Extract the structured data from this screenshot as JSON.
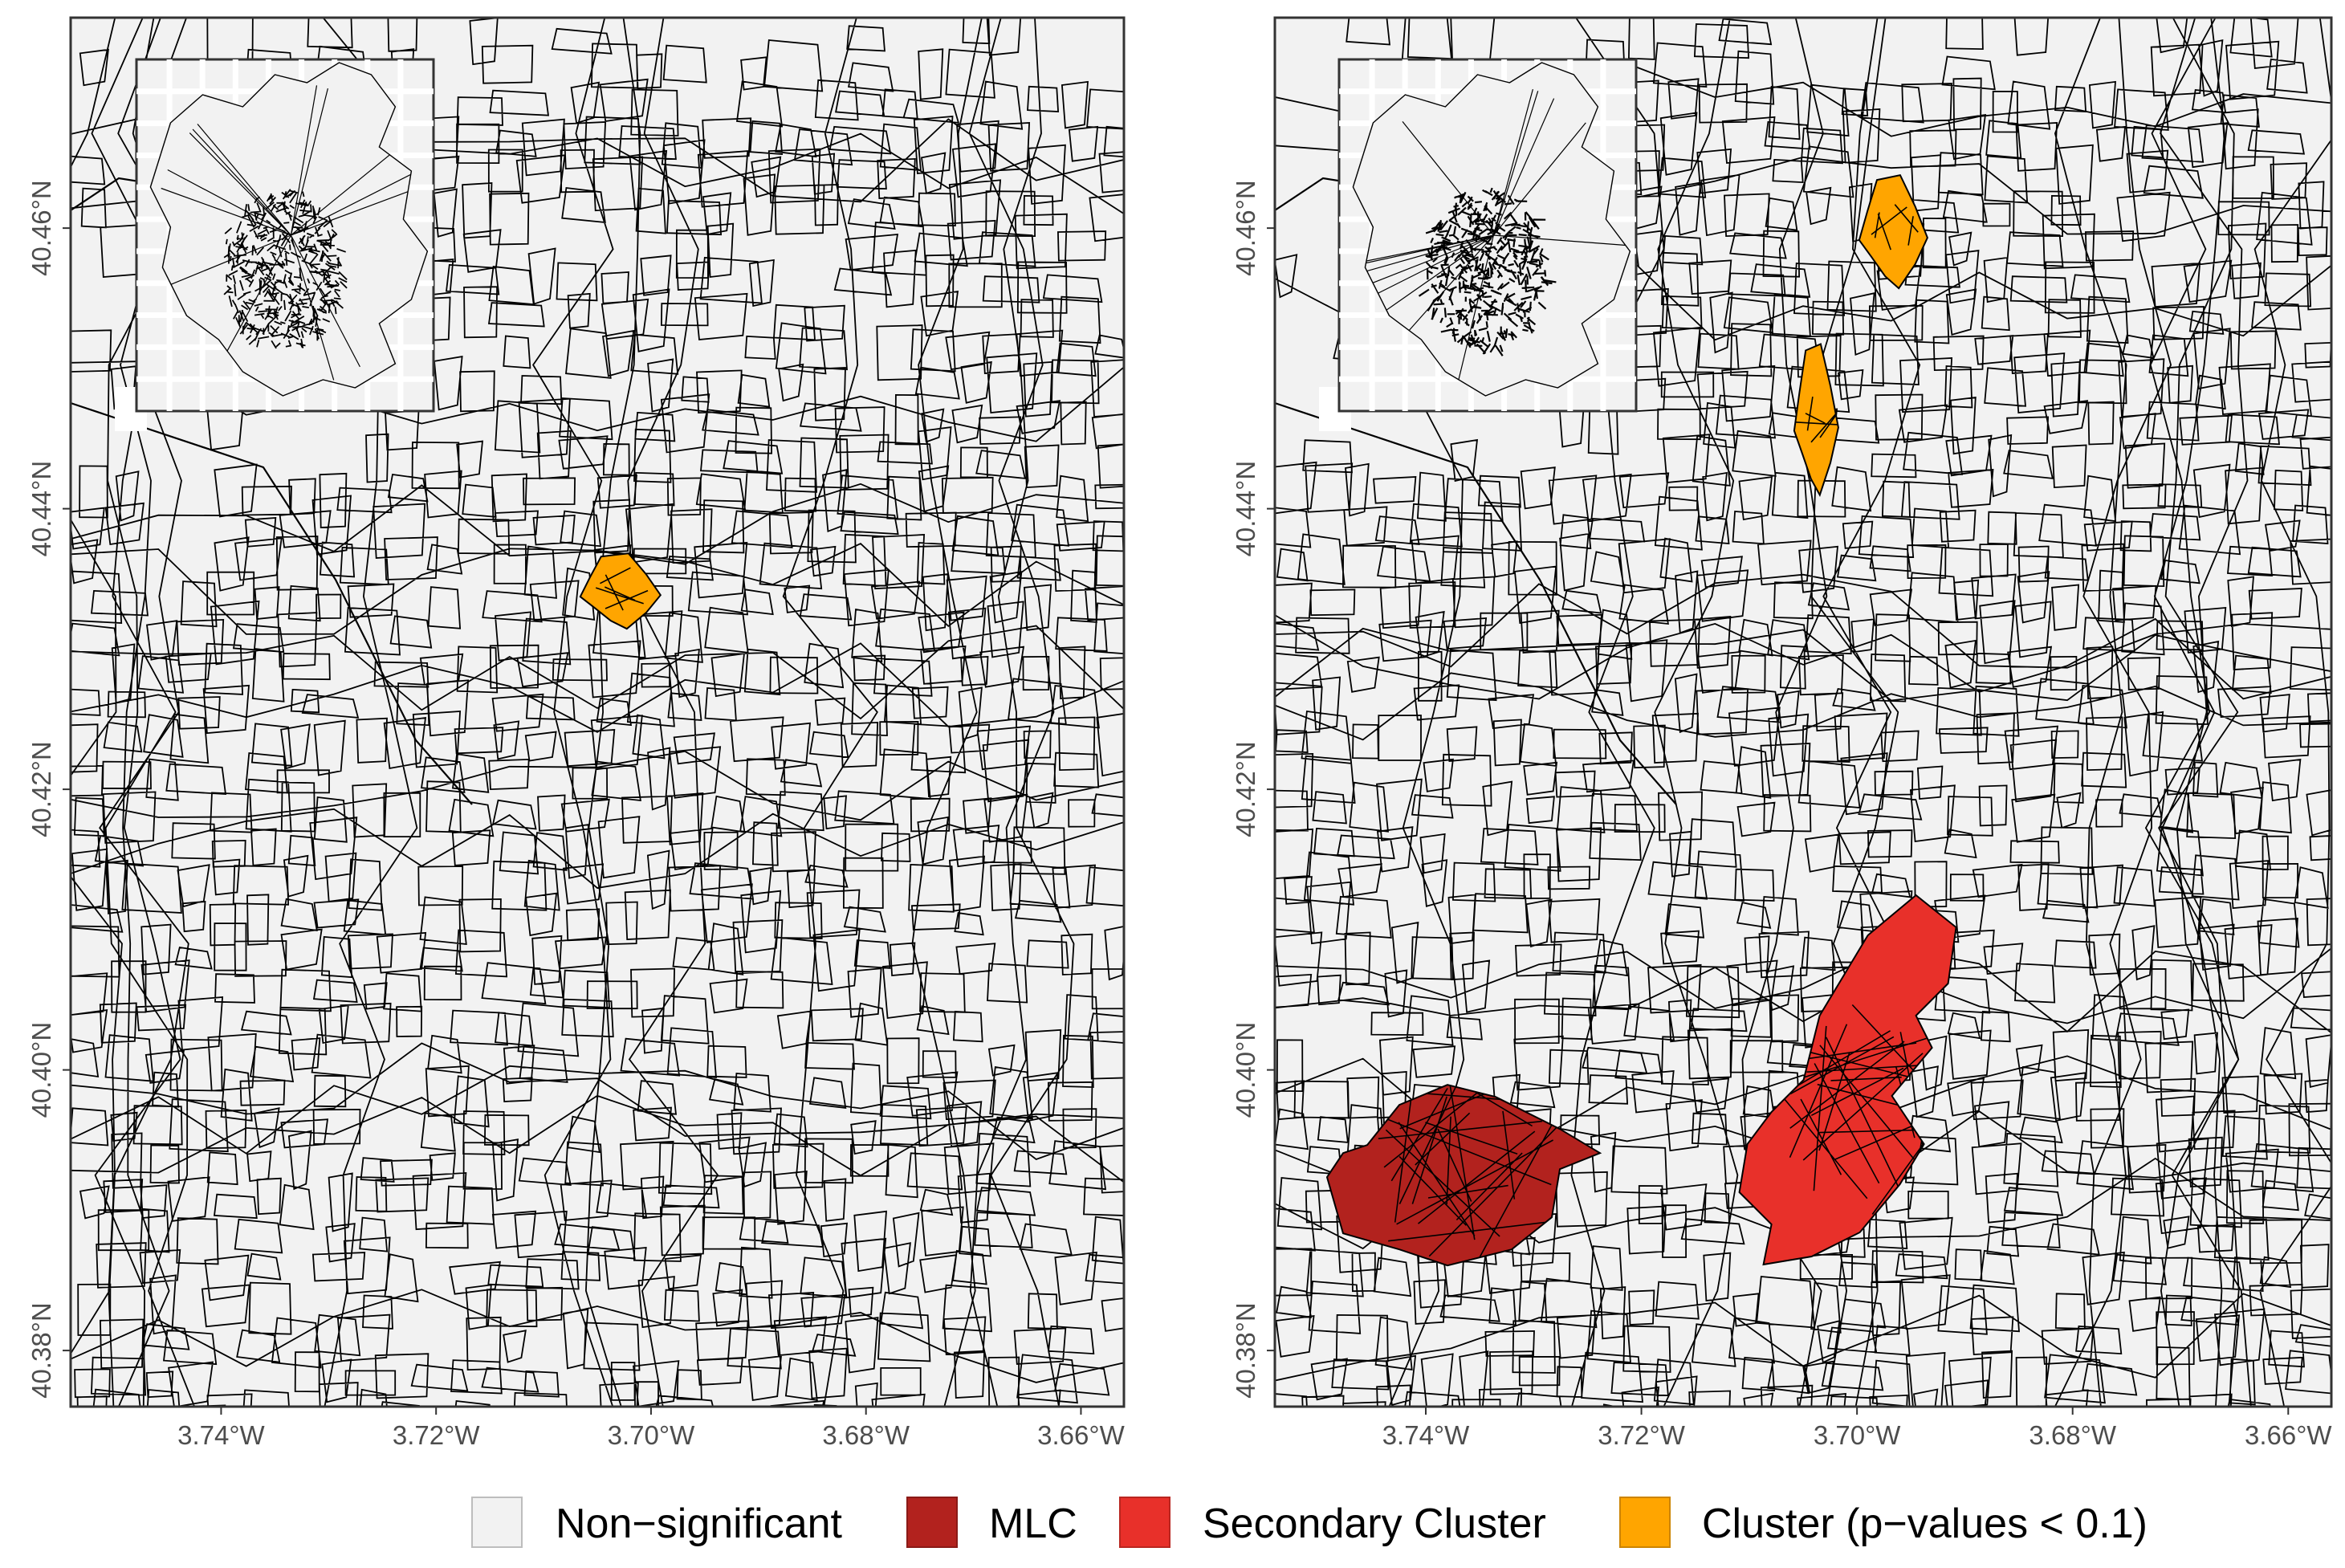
{
  "panels": [
    {
      "id": "left",
      "clusters": [
        {
          "type": "cluster_p01",
          "center": {
            "lon": -3.7027,
            "lat": 40.4343
          }
        }
      ]
    },
    {
      "id": "right",
      "clusters": [
        {
          "type": "cluster_p01",
          "center": {
            "lon": -3.6965,
            "lat": 40.46
          }
        },
        {
          "type": "cluster_p01",
          "center": {
            "lon": -3.7037,
            "lat": 40.4467
          }
        },
        {
          "type": "mlc",
          "center": {
            "lon": -3.7365,
            "lat": 40.3935
          }
        },
        {
          "type": "secondary",
          "center": {
            "lon": -3.699,
            "lat": 40.397
          }
        }
      ]
    }
  ],
  "axes": {
    "x": {
      "min": -3.754,
      "max": -3.656,
      "ticks": [
        {
          "value": -3.74,
          "label": "3.74°W"
        },
        {
          "value": -3.72,
          "label": "3.72°W"
        },
        {
          "value": -3.7,
          "label": "3.70°W"
        },
        {
          "value": -3.68,
          "label": "3.68°W"
        },
        {
          "value": -3.66,
          "label": "3.66°W"
        }
      ]
    },
    "y": {
      "min": 40.376,
      "max": 40.475,
      "ticks": [
        {
          "value": 40.38,
          "label": "40.38°N"
        },
        {
          "value": 40.4,
          "label": "40.40°N"
        },
        {
          "value": 40.42,
          "label": "40.42°N"
        },
        {
          "value": 40.44,
          "label": "40.44°N"
        },
        {
          "value": 40.46,
          "label": "40.46°N"
        }
      ]
    }
  },
  "legend": {
    "items": [
      {
        "key": "nonsig",
        "label": "Non−significant",
        "color": "#f2f2f2"
      },
      {
        "key": "mlc",
        "label": "MLC",
        "color": "#b2221e"
      },
      {
        "key": "secondary",
        "label": "Secondary Cluster",
        "color": "#e8302a"
      },
      {
        "key": "cluster_p01",
        "label": "Cluster (p−values < 0.1)",
        "color": "#ffa500"
      }
    ]
  },
  "colors": {
    "background": "#f2f2f2",
    "boundary": "#000000"
  }
}
